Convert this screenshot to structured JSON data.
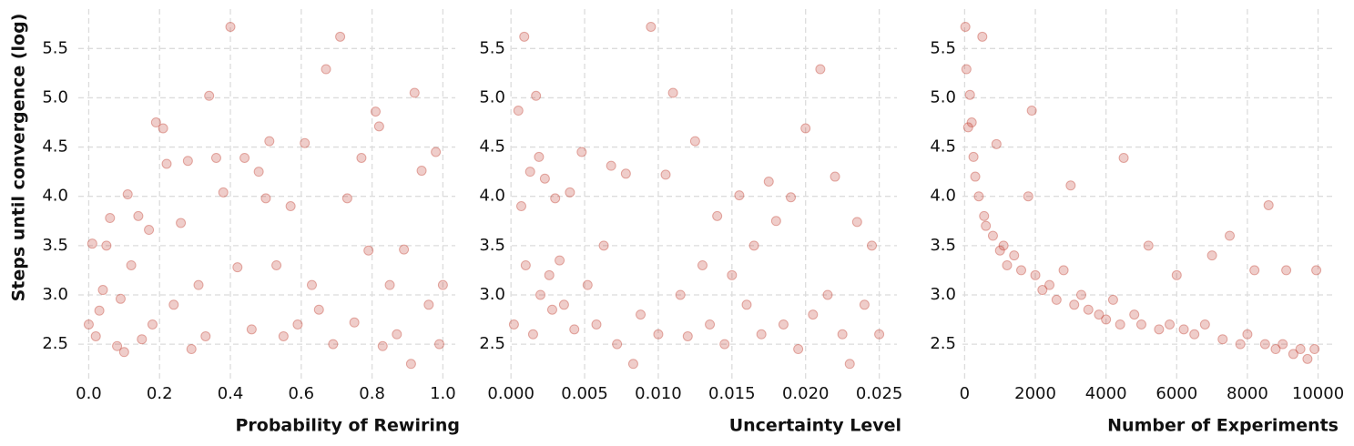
{
  "chart_data": [
    {
      "type": "scatter",
      "ylabel": "Steps until convergence (log)",
      "xlabel": "Probability of Rewiring",
      "color": "#c0392b",
      "grid": true,
      "xlim": [
        -0.05,
        1.035
      ],
      "ylim": [
        2.15,
        5.9
      ],
      "xticks": [
        {
          "value": 0,
          "label": "0.0"
        },
        {
          "value": 0.2,
          "label": "0.2"
        },
        {
          "value": 0.4,
          "label": "0.4"
        },
        {
          "value": 0.6,
          "label": "0.6"
        },
        {
          "value": 0.8,
          "label": "0.8"
        },
        {
          "value": 1,
          "label": "1.0"
        }
      ],
      "yticks": [
        2.5,
        {
          "value": 3,
          "label": "3.0"
        },
        3.5,
        {
          "value": 4,
          "label": "4.0"
        },
        4.5,
        {
          "value": 5,
          "label": "5.0"
        },
        5.5
      ],
      "x": [
        0,
        0.01,
        0.02,
        0.03,
        0.04,
        0.05,
        0.06,
        0.08,
        0.09,
        0.1,
        0.11,
        0.12,
        0.14,
        0.15,
        0.17,
        0.18,
        0.19,
        0.21,
        0.22,
        0.24,
        0.26,
        0.28,
        0.29,
        0.31,
        0.33,
        0.34,
        0.36,
        0.38,
        0.4,
        0.42,
        0.44,
        0.46,
        0.48,
        0.5,
        0.51,
        0.53,
        0.55,
        0.57,
        0.59,
        0.61,
        0.63,
        0.65,
        0.67,
        0.69,
        0.71,
        0.73,
        0.75,
        0.77,
        0.79,
        0.81,
        0.82,
        0.83,
        0.85,
        0.87,
        0.89,
        0.91,
        0.92,
        0.94,
        0.96,
        0.98,
        0.99,
        1.0
      ],
      "values": [
        2.7,
        3.52,
        2.58,
        2.84,
        3.05,
        3.5,
        3.78,
        2.48,
        2.96,
        2.42,
        4.02,
        3.3,
        3.8,
        2.55,
        3.66,
        2.7,
        4.75,
        4.69,
        4.33,
        2.9,
        3.73,
        4.36,
        2.45,
        3.1,
        2.58,
        5.02,
        4.39,
        4.04,
        5.72,
        3.28,
        4.39,
        2.65,
        4.25,
        3.98,
        4.56,
        3.3,
        2.58,
        3.9,
        2.7,
        4.54,
        3.1,
        2.85,
        5.29,
        2.5,
        5.62,
        3.98,
        2.72,
        4.39,
        3.45,
        4.86,
        4.71,
        2.48,
        3.1,
        2.6,
        3.46,
        2.3,
        5.05,
        4.26,
        2.9,
        4.45,
        2.5,
        3.1
      ]
    },
    {
      "type": "scatter",
      "xlabel": "Uncertainty Level",
      "color": "#c0392b",
      "grid": true,
      "xlim": [
        -0.001,
        0.0262
      ],
      "ylim": [
        2.15,
        5.9
      ],
      "xticks": [
        {
          "value": 0,
          "label": "0.000"
        },
        {
          "value": 0.005,
          "label": "0.005"
        },
        {
          "value": 0.01,
          "label": "0.010"
        },
        {
          "value": 0.015,
          "label": "0.015"
        },
        {
          "value": 0.02,
          "label": "0.020"
        },
        {
          "value": 0.025,
          "label": "0.025"
        }
      ],
      "yticks": [
        2.5,
        {
          "value": 3,
          "label": "3.0"
        },
        3.5,
        {
          "value": 4,
          "label": "4.0"
        },
        4.5,
        {
          "value": 5,
          "label": "5.0"
        },
        5.5
      ],
      "x": [
        0.0002,
        0.0005,
        0.0007,
        0.0009,
        0.001,
        0.0013,
        0.0015,
        0.0017,
        0.0019,
        0.002,
        0.0023,
        0.0026,
        0.0028,
        0.003,
        0.0033,
        0.0036,
        0.004,
        0.0043,
        0.0048,
        0.0052,
        0.0058,
        0.0063,
        0.0068,
        0.0072,
        0.0078,
        0.0083,
        0.0088,
        0.0095,
        0.01,
        0.0105,
        0.011,
        0.0115,
        0.012,
        0.0125,
        0.013,
        0.0135,
        0.014,
        0.0145,
        0.015,
        0.0155,
        0.016,
        0.0165,
        0.017,
        0.0175,
        0.018,
        0.0185,
        0.019,
        0.0195,
        0.02,
        0.0205,
        0.021,
        0.0215,
        0.022,
        0.0225,
        0.023,
        0.0235,
        0.024,
        0.0245,
        0.025
      ],
      "values": [
        2.7,
        4.87,
        3.9,
        5.62,
        3.3,
        4.25,
        2.6,
        5.02,
        4.4,
        3.0,
        4.18,
        3.2,
        2.85,
        3.98,
        3.35,
        2.9,
        4.04,
        2.65,
        4.45,
        3.1,
        2.7,
        3.5,
        4.31,
        2.5,
        4.23,
        2.3,
        2.8,
        5.72,
        2.6,
        4.22,
        5.05,
        3.0,
        2.58,
        4.56,
        3.3,
        2.7,
        3.8,
        2.5,
        3.2,
        4.01,
        2.9,
        3.5,
        2.6,
        4.15,
        3.75,
        2.7,
        3.99,
        2.45,
        4.69,
        2.8,
        5.29,
        3.0,
        4.2,
        2.6,
        2.3,
        3.74,
        2.9,
        3.5,
        2.6
      ]
    },
    {
      "type": "scatter",
      "xlabel": "Number of Experiments",
      "color": "#c0392b",
      "grid": true,
      "xlim": [
        -500,
        10450
      ],
      "ylim": [
        2.15,
        5.9
      ],
      "xticks": [
        0,
        2000,
        4000,
        6000,
        8000,
        10000
      ],
      "yticks": [
        2.5,
        {
          "value": 3,
          "label": "3.0"
        },
        3.5,
        {
          "value": 4,
          "label": "4.0"
        },
        4.5,
        {
          "value": 5,
          "label": "5.0"
        },
        5.5
      ],
      "x": [
        20,
        50,
        100,
        150,
        200,
        250,
        300,
        400,
        500,
        550,
        600,
        800,
        900,
        1000,
        1100,
        1200,
        1400,
        1600,
        1800,
        1900,
        2000,
        2200,
        2400,
        2600,
        2800,
        3000,
        3100,
        3300,
        3500,
        3800,
        4000,
        4200,
        4400,
        4500,
        4800,
        5000,
        5200,
        5500,
        5800,
        6000,
        6200,
        6500,
        6800,
        7000,
        7300,
        7500,
        7800,
        8000,
        8200,
        8500,
        8600,
        8800,
        9000,
        9100,
        9300,
        9500,
        9700,
        9900,
        9950
      ],
      "values": [
        5.72,
        5.29,
        4.7,
        5.03,
        4.75,
        4.4,
        4.2,
        4.0,
        5.62,
        3.8,
        3.7,
        3.6,
        4.53,
        3.45,
        3.5,
        3.3,
        3.4,
        3.25,
        4.0,
        4.87,
        3.2,
        3.05,
        3.1,
        2.95,
        3.25,
        4.11,
        2.9,
        3.0,
        2.85,
        2.8,
        2.75,
        2.95,
        2.7,
        4.39,
        2.8,
        2.7,
        3.5,
        2.65,
        2.7,
        3.2,
        2.65,
        2.6,
        2.7,
        3.4,
        2.55,
        3.6,
        2.5,
        2.6,
        3.25,
        2.5,
        3.91,
        2.45,
        2.5,
        3.25,
        2.4,
        2.45,
        2.35,
        2.45,
        3.25
      ]
    }
  ]
}
